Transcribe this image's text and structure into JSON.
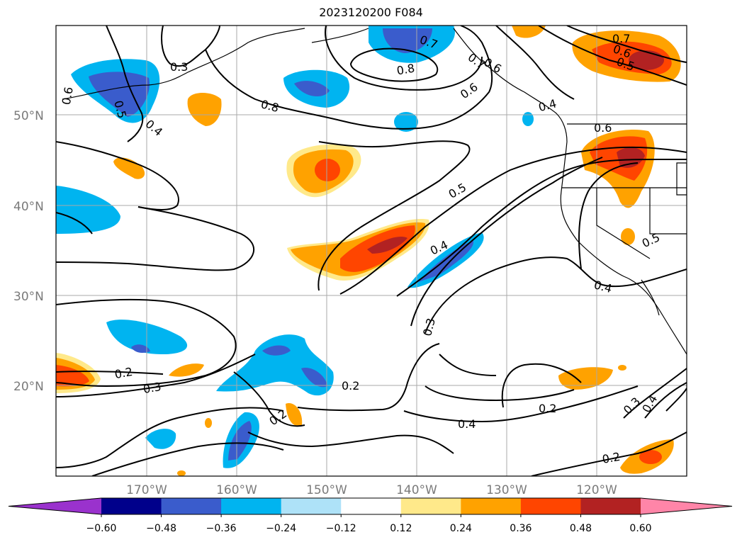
{
  "title": "2023120200 F084",
  "map": {
    "lat_labels": [
      "50°N",
      "40°N",
      "30°N",
      "20°N"
    ],
    "lon_labels": [
      "170°W",
      "160°W",
      "150°W",
      "140°W",
      "130°W",
      "120°W"
    ],
    "gridlines": true
  },
  "colorbar": {
    "orientation": "horizontal",
    "extend": "both",
    "tick_labels": [
      "−0.60",
      "−0.48",
      "−0.36",
      "−0.24",
      "−0.12",
      "0.12",
      "0.24",
      "0.36",
      "0.48",
      "0.60"
    ],
    "colors": [
      "#9a32cd",
      "#00008b",
      "#3a5ccc",
      "#00b4f0",
      "#aee2f8",
      "#ffffff",
      "#ffe98a",
      "#ffa200",
      "#ff4500",
      "#b22222",
      "#ff85a8"
    ]
  },
  "contour_labels": [
    "0.3",
    "0.6",
    "0.5",
    "0.4",
    "0.8",
    "0.7",
    "0.6",
    "0.8",
    "0.7",
    "0.6",
    "0.5",
    "0.6",
    "0.4",
    "0.6",
    "0.5",
    "0.4",
    "0.5",
    "0.4",
    "0.3",
    "0.2",
    "0.3",
    "0.2",
    "0.2",
    "0.4",
    "0.2",
    "0.3",
    "0.4",
    "0.2",
    "0.7"
  ]
}
